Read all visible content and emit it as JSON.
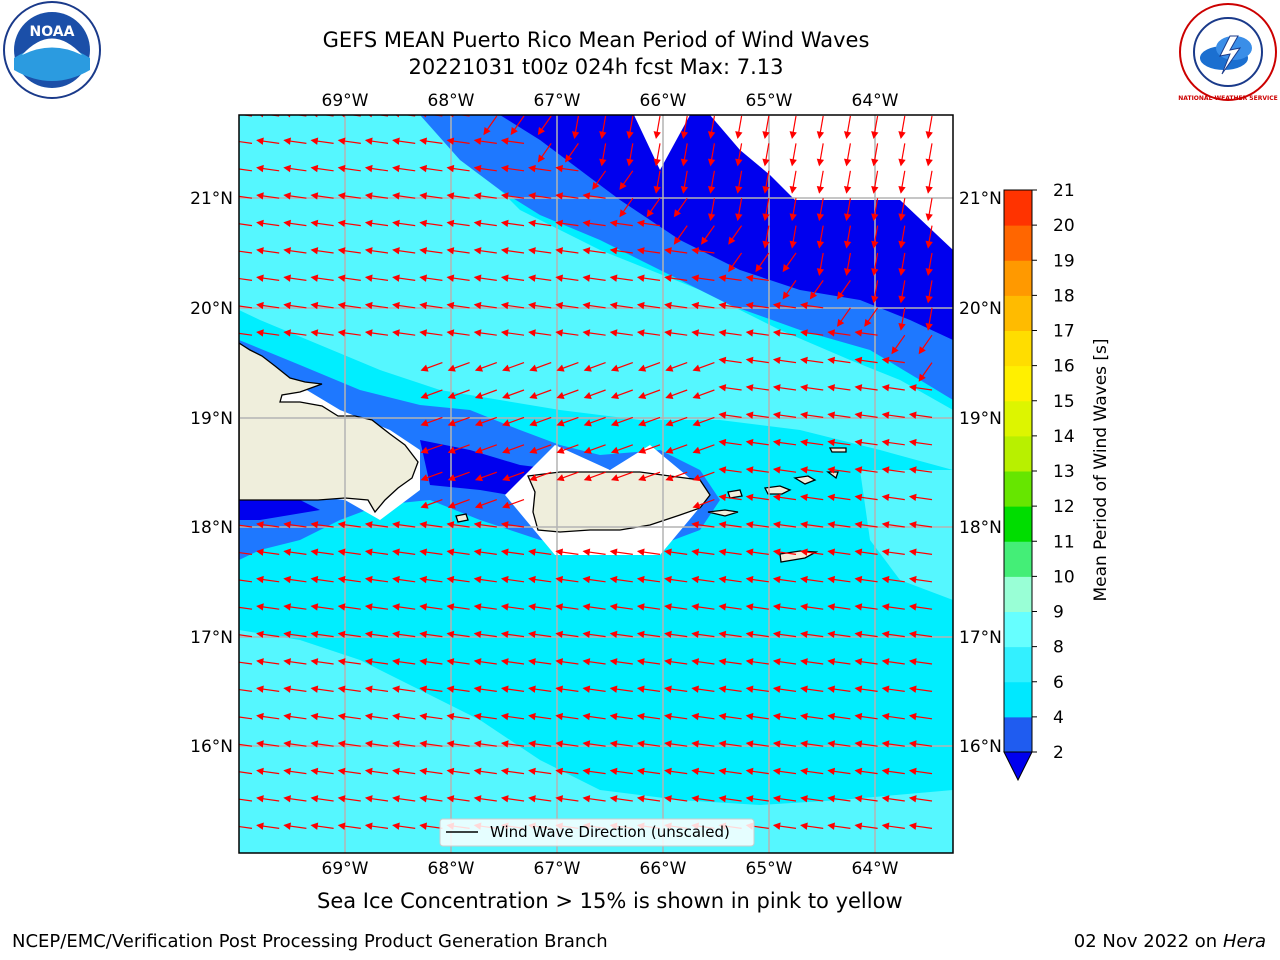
{
  "title_line1": "GEFS MEAN Puerto Rico Mean Period of Wind Waves",
  "title_line2": "20221031 t00z 024h fcst   Max: 7.13",
  "lon_labels": [
    "69°W",
    "68°W",
    "67°W",
    "66°W",
    "65°W",
    "64°W"
  ],
  "lat_labels": [
    "21°N",
    "20°N",
    "19°N",
    "18°N",
    "17°N",
    "16°N"
  ],
  "legend_label": "Wind Wave Direction (unscaled)",
  "colorbar": {
    "title": "Mean Period of Wind Waves [s]",
    "ticks": [
      "2",
      "4",
      "6",
      "8",
      "9",
      "10",
      "11",
      "12",
      "13",
      "14",
      "15",
      "16",
      "17",
      "18",
      "19",
      "20",
      "21"
    ],
    "colors": [
      "#1f5cf0",
      "#00e8ff",
      "#33f0ff",
      "#66ffff",
      "#99ffd6",
      "#44ee77",
      "#00dd00",
      "#66e600",
      "#b8f000",
      "#ddf500",
      "#fff000",
      "#ffdd00",
      "#ffbb00",
      "#ff9900",
      "#ff6600",
      "#ff3300"
    ],
    "under_color": "#0000ee"
  },
  "subtitle": "Sea Ice Concentration > 15% is shown in pink to yellow",
  "footer_left": "NCEP/EMC/Verification Post Processing Product Generation Branch",
  "footer_date": "02 Nov 2022 on",
  "footer_host": "Hera",
  "logos": {
    "left": "NOAA",
    "right": "NATIONAL WEATHER SERVICE"
  },
  "map_colors": {
    "ocean_light": "#55f7ff",
    "ocean": "#00eeff",
    "band_mid": "#1e78ff",
    "band_deep": "#0000ee",
    "land": "#efeedc",
    "arrow": "#ff0000",
    "grid": "#b4b4b4"
  }
}
